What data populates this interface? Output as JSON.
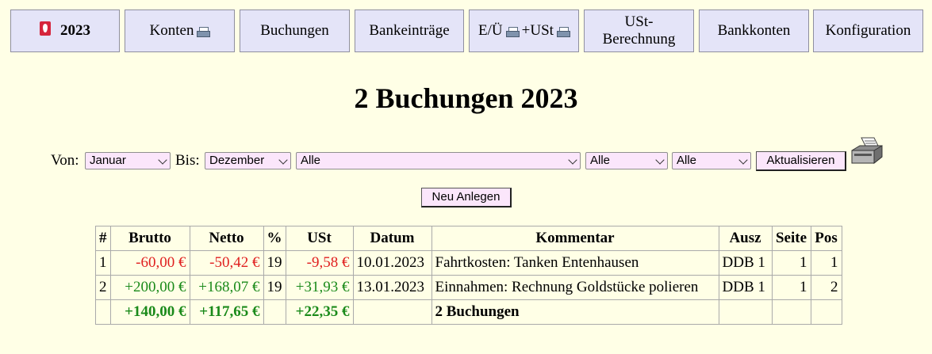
{
  "nav": {
    "year": "2023",
    "konten": "Konten",
    "buchungen": "Buchungen",
    "bankeintraege": "Bankeinträge",
    "eu": "E/Ü",
    "ust": "+USt",
    "ust_berechnung": "USt-Berechnung",
    "bankkonten": "Bankkonten",
    "konfiguration": "Konfiguration"
  },
  "title": "2 Buchungen 2023",
  "filters": {
    "von_label": "Von:",
    "von_value": "Januar",
    "bis_label": "Bis:",
    "bis_value": "Dezember",
    "konto_value": "Alle",
    "filter2_value": "Alle",
    "filter3_value": "Alle",
    "refresh_label": "Aktualisieren",
    "new_label": "Neu Anlegen"
  },
  "table": {
    "headers": [
      "#",
      "Brutto",
      "Netto",
      "%",
      "USt",
      "Datum",
      "Kommentar",
      "Ausz",
      "Seite",
      "Pos"
    ],
    "rows": [
      {
        "nr": "1",
        "brutto": "-60,00 €",
        "netto": "-50,42 €",
        "pct": "19",
        "ust": "-9,58 €",
        "datum": "10.01.2023",
        "kommentar": "Fahrtkosten: Tanken Entenhausen",
        "ausz": "DDB 1",
        "seite": "1",
        "pos": "1",
        "sign": "neg"
      },
      {
        "nr": "2",
        "brutto": "+200,00 €",
        "netto": "+168,07 €",
        "pct": "19",
        "ust": "+31,93 €",
        "datum": "13.01.2023",
        "kommentar": "Einnahmen: Rechnung Goldstücke polieren",
        "ausz": "DDB 1",
        "seite": "1",
        "pos": "2",
        "sign": "pos"
      }
    ],
    "sum": {
      "brutto": "+140,00 €",
      "netto": "+117,65 €",
      "ust": "+22,35 €",
      "kommentar": "2 Buchungen"
    }
  },
  "colors": {
    "negative": "#e02020",
    "positive": "#1a8a1a",
    "tab_bg": "#e4e4f8",
    "page_bg": "#ffffe6"
  }
}
